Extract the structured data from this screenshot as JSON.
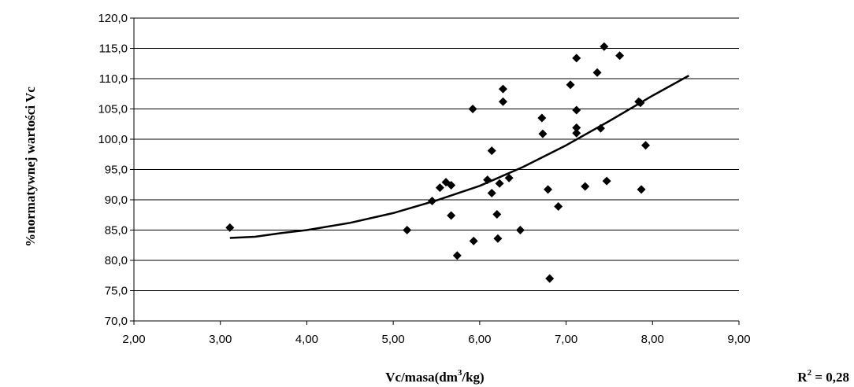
{
  "chart_data": {
    "type": "scatter",
    "xlabel_main": "Vc/masa(dm",
    "xlabel_sup": "3",
    "xlabel_tail": "/kg)",
    "ylabel": "%normatywnej wartości Vc",
    "annotation_main": "R",
    "annotation_sup": "2",
    "annotation_tail": " = 0,28",
    "xlim": [
      2.0,
      9.0
    ],
    "ylim": [
      70.0,
      120.0
    ],
    "x_ticks": [
      2.0,
      3.0,
      4.0,
      5.0,
      6.0,
      7.0,
      8.0,
      9.0
    ],
    "x_tick_labels": [
      "2,00",
      "3,00",
      "4,00",
      "5,00",
      "6,00",
      "7,00",
      "8,00",
      "9,00"
    ],
    "y_ticks": [
      70,
      75,
      80,
      85,
      90,
      95,
      100,
      105,
      110,
      115,
      120
    ],
    "y_tick_labels": [
      "70,0",
      "75,0",
      "80,0",
      "85,0",
      "90,0",
      "95,0",
      "100,0",
      "105,0",
      "110,0",
      "115,0",
      "120,0"
    ],
    "grid": "horizontal",
    "points": [
      {
        "x": 3.11,
        "y": 85.4
      },
      {
        "x": 5.16,
        "y": 85.0
      },
      {
        "x": 5.45,
        "y": 89.8
      },
      {
        "x": 5.54,
        "y": 92.0
      },
      {
        "x": 5.61,
        "y": 92.9
      },
      {
        "x": 5.67,
        "y": 92.4
      },
      {
        "x": 5.67,
        "y": 87.4
      },
      {
        "x": 5.74,
        "y": 80.8
      },
      {
        "x": 5.92,
        "y": 105.0
      },
      {
        "x": 5.93,
        "y": 83.2
      },
      {
        "x": 6.09,
        "y": 93.3
      },
      {
        "x": 6.14,
        "y": 98.1
      },
      {
        "x": 6.14,
        "y": 91.1
      },
      {
        "x": 6.2,
        "y": 87.6
      },
      {
        "x": 6.21,
        "y": 83.6
      },
      {
        "x": 6.23,
        "y": 92.7
      },
      {
        "x": 6.27,
        "y": 108.3
      },
      {
        "x": 6.27,
        "y": 106.2
      },
      {
        "x": 6.34,
        "y": 93.6
      },
      {
        "x": 6.47,
        "y": 85.0
      },
      {
        "x": 6.72,
        "y": 103.5
      },
      {
        "x": 6.73,
        "y": 100.9
      },
      {
        "x": 6.79,
        "y": 91.7
      },
      {
        "x": 6.81,
        "y": 77.0
      },
      {
        "x": 6.91,
        "y": 88.9
      },
      {
        "x": 7.05,
        "y": 109.0
      },
      {
        "x": 7.12,
        "y": 113.4
      },
      {
        "x": 7.12,
        "y": 104.8
      },
      {
        "x": 7.12,
        "y": 101.9
      },
      {
        "x": 7.12,
        "y": 101.0
      },
      {
        "x": 7.22,
        "y": 92.2
      },
      {
        "x": 7.36,
        "y": 111.0
      },
      {
        "x": 7.4,
        "y": 101.8
      },
      {
        "x": 7.44,
        "y": 115.3
      },
      {
        "x": 7.47,
        "y": 93.1
      },
      {
        "x": 7.62,
        "y": 113.8
      },
      {
        "x": 7.84,
        "y": 106.2
      },
      {
        "x": 7.86,
        "y": 106.0
      },
      {
        "x": 7.87,
        "y": 91.7
      },
      {
        "x": 7.92,
        "y": 99.0
      }
    ],
    "trendline": [
      {
        "x": 3.11,
        "y": 83.7
      },
      {
        "x": 3.4,
        "y": 83.9
      },
      {
        "x": 3.7,
        "y": 84.5
      },
      {
        "x": 4.0,
        "y": 85.0
      },
      {
        "x": 4.5,
        "y": 86.2
      },
      {
        "x": 5.0,
        "y": 87.8
      },
      {
        "x": 5.5,
        "y": 89.9
      },
      {
        "x": 6.0,
        "y": 92.3
      },
      {
        "x": 6.5,
        "y": 95.4
      },
      {
        "x": 7.0,
        "y": 99.0
      },
      {
        "x": 7.5,
        "y": 103.0
      },
      {
        "x": 8.0,
        "y": 107.2
      },
      {
        "x": 8.42,
        "y": 110.5
      }
    ],
    "marker_color": "#000000",
    "line_color": "#000000",
    "grid_color": "#000000"
  }
}
